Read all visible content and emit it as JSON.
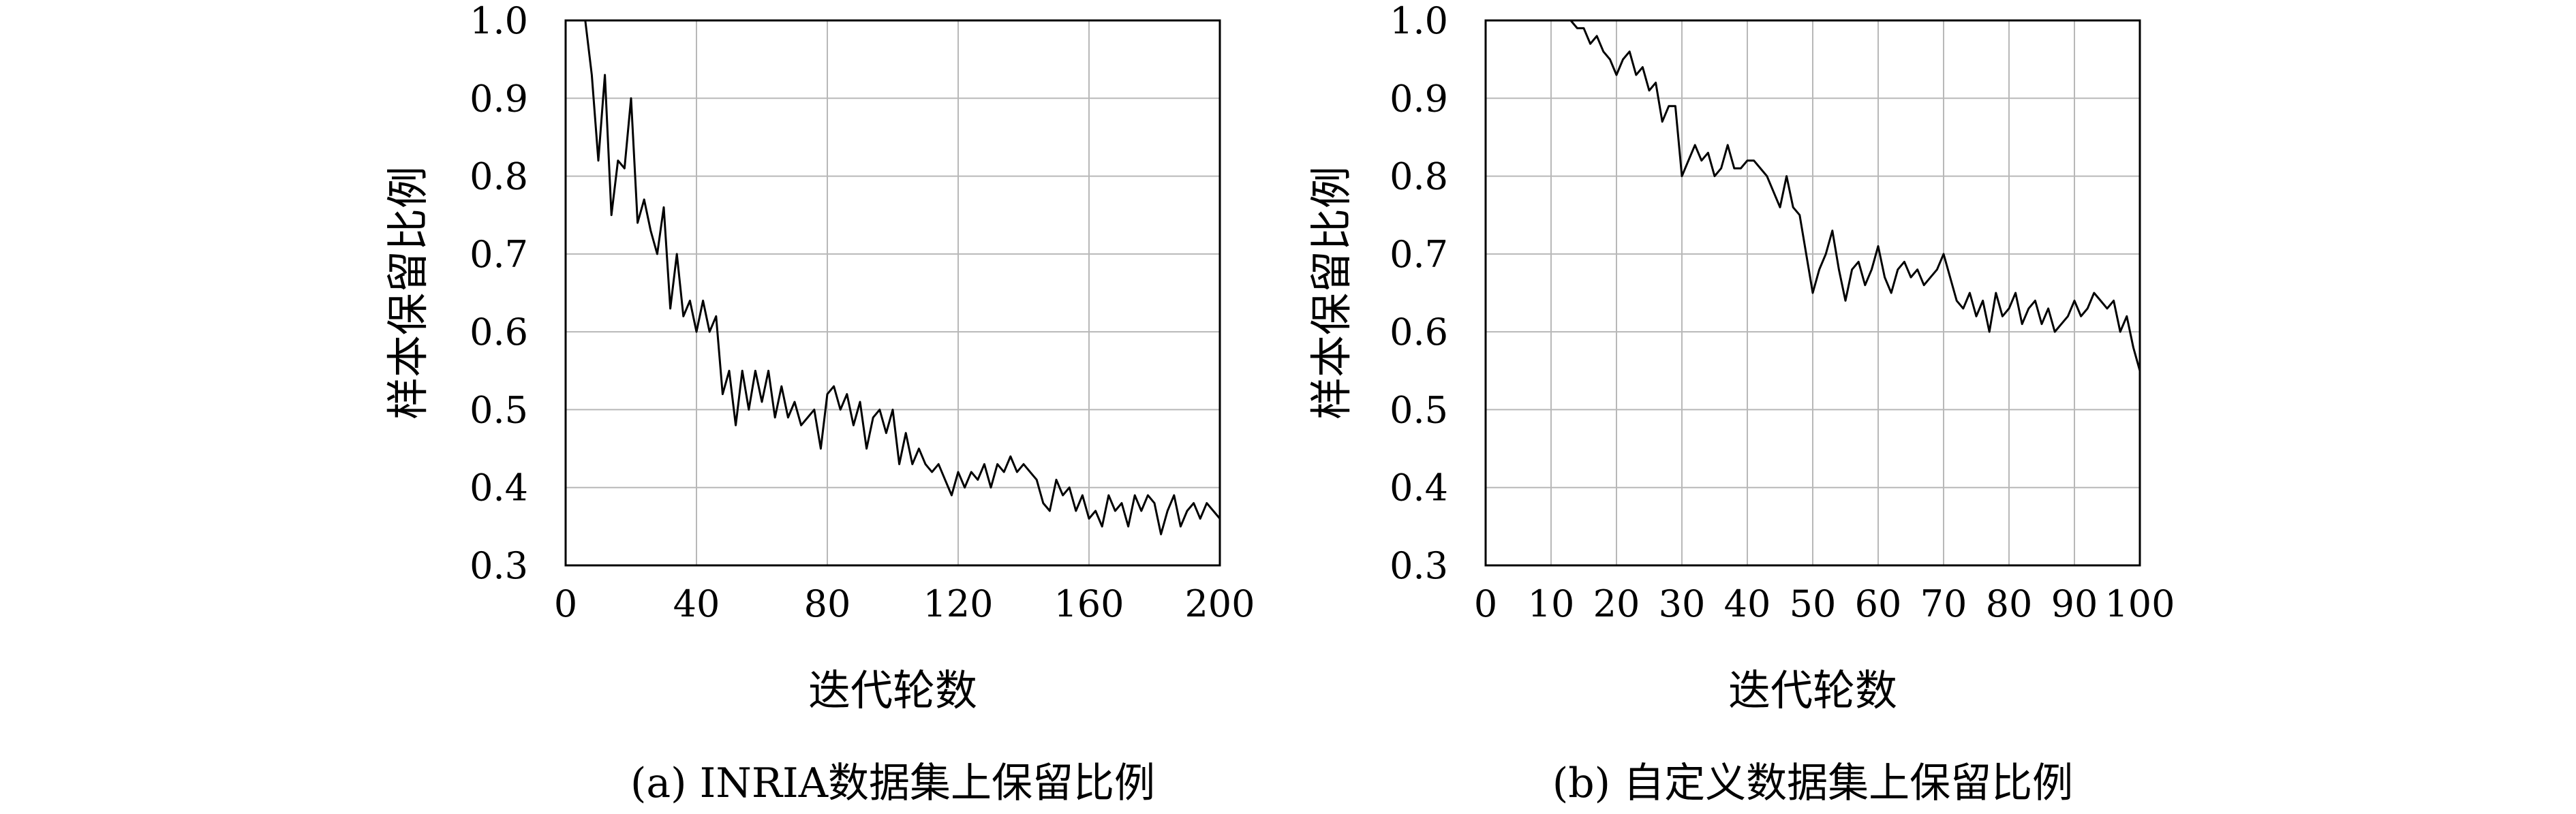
{
  "chart_data": [
    {
      "type": "line",
      "panel": "a",
      "caption": "(a) INRIA数据集上保留比例",
      "xlabel": "迭代轮数",
      "ylabel": "样本保留比例",
      "xlim": [
        0,
        200
      ],
      "ylim": [
        0.3,
        1.0
      ],
      "xticks": [
        "0",
        "40",
        "80",
        "120",
        "160",
        "200"
      ],
      "yticks": [
        "0.3",
        "0.4",
        "0.5",
        "0.6",
        "0.7",
        "0.8",
        "0.9",
        "1.0"
      ],
      "grid": true,
      "series": [
        {
          "x": [
            6,
            8,
            10,
            12,
            14,
            16,
            18,
            20,
            22,
            24,
            26,
            28,
            30,
            32,
            34,
            36,
            38,
            40,
            42,
            44,
            46,
            48,
            50,
            52,
            54,
            56,
            58,
            60,
            62,
            64,
            66,
            68,
            70,
            72,
            74,
            76,
            78,
            80,
            82,
            84,
            86,
            88,
            90,
            92,
            94,
            96,
            98,
            100,
            102,
            104,
            106,
            108,
            110,
            112,
            114,
            116,
            118,
            120,
            122,
            124,
            126,
            128,
            130,
            132,
            134,
            136,
            138,
            140,
            142,
            144,
            146,
            148,
            150,
            152,
            154,
            156,
            158,
            160,
            162,
            164,
            166,
            168,
            170,
            172,
            174,
            176,
            178,
            180,
            182,
            184,
            186,
            188,
            190,
            192,
            194,
            196,
            198,
            200
          ],
          "y": [
            1.0,
            0.93,
            0.82,
            0.93,
            0.75,
            0.82,
            0.81,
            0.9,
            0.74,
            0.77,
            0.73,
            0.7,
            0.76,
            0.63,
            0.7,
            0.62,
            0.64,
            0.6,
            0.64,
            0.6,
            0.62,
            0.52,
            0.55,
            0.48,
            0.55,
            0.5,
            0.55,
            0.51,
            0.55,
            0.49,
            0.53,
            0.49,
            0.51,
            0.48,
            0.49,
            0.5,
            0.45,
            0.52,
            0.53,
            0.5,
            0.52,
            0.48,
            0.51,
            0.45,
            0.49,
            0.5,
            0.47,
            0.5,
            0.43,
            0.47,
            0.43,
            0.45,
            0.43,
            0.42,
            0.43,
            0.41,
            0.39,
            0.42,
            0.4,
            0.42,
            0.41,
            0.43,
            0.4,
            0.43,
            0.42,
            0.44,
            0.42,
            0.43,
            0.42,
            0.41,
            0.38,
            0.37,
            0.41,
            0.39,
            0.4,
            0.37,
            0.39,
            0.36,
            0.37,
            0.35,
            0.39,
            0.37,
            0.38,
            0.35,
            0.39,
            0.37,
            0.39,
            0.38,
            0.34,
            0.37,
            0.39,
            0.35,
            0.37,
            0.38,
            0.36,
            0.38,
            0.37,
            0.36
          ]
        }
      ]
    },
    {
      "type": "line",
      "panel": "b",
      "caption": "(b) 自定义数据集上保留比例",
      "xlabel": "迭代轮数",
      "ylabel": "样本保留比例",
      "xlim": [
        0,
        100
      ],
      "ylim": [
        0.3,
        1.0
      ],
      "xticks": [
        "0",
        "10",
        "20",
        "30",
        "40",
        "50",
        "60",
        "70",
        "80",
        "90",
        "100"
      ],
      "yticks": [
        "0.3",
        "0.4",
        "0.5",
        "0.6",
        "0.7",
        "0.8",
        "0.9",
        "1.0"
      ],
      "grid": true,
      "series": [
        {
          "x": [
            13,
            14,
            15,
            16,
            17,
            18,
            19,
            20,
            21,
            22,
            23,
            24,
            25,
            26,
            27,
            28,
            29,
            30,
            31,
            32,
            33,
            34,
            35,
            36,
            37,
            38,
            39,
            40,
            41,
            42,
            43,
            44,
            45,
            46,
            47,
            48,
            49,
            50,
            51,
            52,
            53,
            54,
            55,
            56,
            57,
            58,
            59,
            60,
            61,
            62,
            63,
            64,
            65,
            66,
            67,
            68,
            69,
            70,
            71,
            72,
            73,
            74,
            75,
            76,
            77,
            78,
            79,
            80,
            81,
            82,
            83,
            84,
            85,
            86,
            87,
            88,
            89,
            90,
            91,
            92,
            93,
            94,
            95,
            96,
            97,
            98,
            99,
            100
          ],
          "y": [
            1.0,
            0.99,
            0.99,
            0.97,
            0.98,
            0.96,
            0.95,
            0.93,
            0.95,
            0.96,
            0.93,
            0.94,
            0.91,
            0.92,
            0.87,
            0.89,
            0.89,
            0.8,
            0.82,
            0.84,
            0.82,
            0.83,
            0.8,
            0.81,
            0.84,
            0.81,
            0.81,
            0.82,
            0.82,
            0.81,
            0.8,
            0.78,
            0.76,
            0.8,
            0.76,
            0.75,
            0.7,
            0.65,
            0.68,
            0.7,
            0.73,
            0.68,
            0.64,
            0.68,
            0.69,
            0.66,
            0.68,
            0.71,
            0.67,
            0.65,
            0.68,
            0.69,
            0.67,
            0.68,
            0.66,
            0.67,
            0.68,
            0.7,
            0.67,
            0.64,
            0.63,
            0.65,
            0.62,
            0.64,
            0.6,
            0.65,
            0.62,
            0.63,
            0.65,
            0.61,
            0.63,
            0.64,
            0.61,
            0.63,
            0.6,
            0.61,
            0.62,
            0.64,
            0.62,
            0.63,
            0.65,
            0.64,
            0.63,
            0.64,
            0.6,
            0.62,
            0.58,
            0.55
          ]
        }
      ]
    }
  ]
}
